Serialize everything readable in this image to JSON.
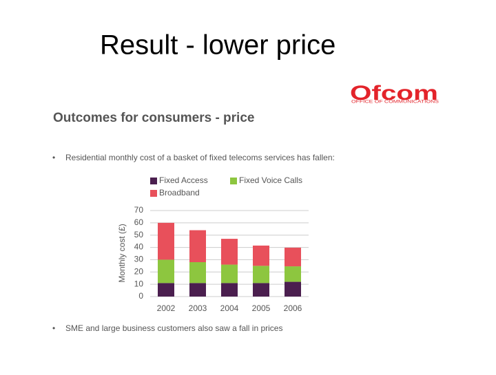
{
  "slide": {
    "title": "Result - lower price",
    "logo": "Ofcom",
    "logo_subtitle": "OFFICE OF COMMUNICATIONS",
    "heading": "Outcomes for consumers - price",
    "bullets": [
      "Residential monthly cost of a basket of fixed telecoms services has fallen:",
      "SME and large business customers also saw a fall in prices"
    ]
  },
  "chart_data": {
    "type": "stacked_bar",
    "y_label": "Monthly cost (£)",
    "categories": [
      "2002",
      "2003",
      "2004",
      "2005",
      "2006"
    ],
    "series": [
      {
        "name": "Fixed Access",
        "color": "#4b1f4f",
        "values": [
          11,
          11,
          11,
          11,
          12
        ]
      },
      {
        "name": "Fixed Voice Calls",
        "color": "#8dc63f",
        "values": [
          19,
          17,
          15,
          14,
          12.6
        ]
      },
      {
        "name": "Broadband",
        "color": "#e8505b",
        "values": [
          30,
          26,
          21,
          16.5,
          15.2
        ]
      }
    ],
    "ylim": [
      0,
      70
    ],
    "yticks": [
      0,
      10,
      20,
      30,
      40,
      50,
      60,
      70
    ],
    "grid": true
  }
}
